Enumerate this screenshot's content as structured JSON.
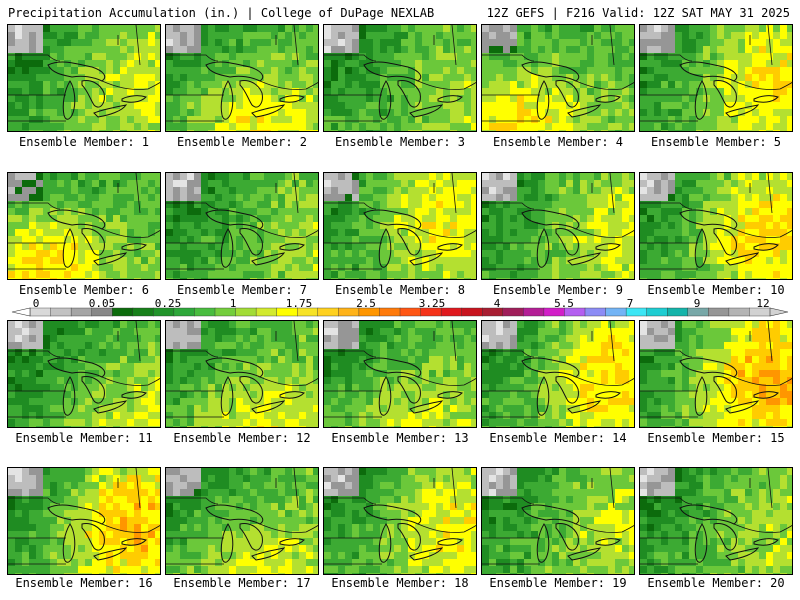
{
  "header": {
    "title": "Precipitation Accumulation (in.) | College of DuPage NEXLAB",
    "valid": "12Z GEFS | F216 Valid: 12Z SAT MAY 31 2025"
  },
  "panels": [
    {
      "label": "Ensemble Member: 1",
      "intensity": 0.35,
      "hotspot": "east"
    },
    {
      "label": "Ensemble Member: 2",
      "intensity": 0.45,
      "hotspot": "south"
    },
    {
      "label": "Ensemble Member: 3",
      "intensity": 0.2,
      "hotspot": "east"
    },
    {
      "label": "Ensemble Member: 4",
      "intensity": 0.6,
      "hotspot": "southwest"
    },
    {
      "label": "Ensemble Member: 5",
      "intensity": 0.5,
      "hotspot": "east"
    },
    {
      "label": "Ensemble Member: 6",
      "intensity": 0.65,
      "hotspot": "southwest"
    },
    {
      "label": "Ensemble Member: 7",
      "intensity": 0.2,
      "hotspot": "east"
    },
    {
      "label": "Ensemble Member: 8",
      "intensity": 0.5,
      "hotspot": "northeast"
    },
    {
      "label": "Ensemble Member: 9",
      "intensity": 0.35,
      "hotspot": "east"
    },
    {
      "label": "Ensemble Member: 10",
      "intensity": 0.55,
      "hotspot": "east"
    },
    {
      "label": "Ensemble Member: 11",
      "intensity": 0.3,
      "hotspot": "southeast"
    },
    {
      "label": "Ensemble Member: 12",
      "intensity": 0.4,
      "hotspot": "south"
    },
    {
      "label": "Ensemble Member: 13",
      "intensity": 0.35,
      "hotspot": "south"
    },
    {
      "label": "Ensemble Member: 14",
      "intensity": 0.55,
      "hotspot": "east"
    },
    {
      "label": "Ensemble Member: 15",
      "intensity": 0.7,
      "hotspot": "east"
    },
    {
      "label": "Ensemble Member: 16",
      "intensity": 0.65,
      "hotspot": "east"
    },
    {
      "label": "Ensemble Member: 17",
      "intensity": 0.4,
      "hotspot": "south"
    },
    {
      "label": "Ensemble Member: 18",
      "intensity": 0.45,
      "hotspot": "east"
    },
    {
      "label": "Ensemble Member: 19",
      "intensity": 0.3,
      "hotspot": "east"
    },
    {
      "label": "Ensemble Member: 20",
      "intensity": 0.25,
      "hotspot": "east"
    }
  ],
  "colorbar": {
    "labels": [
      "0",
      "0.05",
      "0.25",
      "1",
      "1.75",
      "2.5",
      "3.25",
      "4",
      "5.5",
      "7",
      "9",
      "12"
    ],
    "colors": [
      "#d9d9d9",
      "#c2c2c2",
      "#a5a5a5",
      "#888888",
      "#0c6b0c",
      "#17801a",
      "#21942a",
      "#2ea83a",
      "#49bd3f",
      "#74ce3c",
      "#a2dc36",
      "#d2ea2e",
      "#ffff00",
      "#f7e326",
      "#ffd11f",
      "#ffb319",
      "#ff9600",
      "#ff7a0a",
      "#ff5614",
      "#f53219",
      "#e0191e",
      "#c8141e",
      "#a81e32",
      "#a01e5a",
      "#b41e96",
      "#d21ec8",
      "#b45ff0",
      "#8c8cf5",
      "#73b4f5",
      "#3ce6f5",
      "#1ecdd2",
      "#14b4aa",
      "#78a8a8",
      "#969696",
      "#b4b4b4",
      "#d2d2d2"
    ]
  },
  "map_colors": {
    "precip_scale": [
      "#e4e4e4",
      "#bdbdbd",
      "#969696",
      "#0c6b0c",
      "#1f8c22",
      "#3caa33",
      "#6bc83a",
      "#b4e030",
      "#ffff00",
      "#ffcc00",
      "#ff9600",
      "#ff5614",
      "#e0191e",
      "#a81e32",
      "#b41e96"
    ],
    "outline": "#111111"
  }
}
